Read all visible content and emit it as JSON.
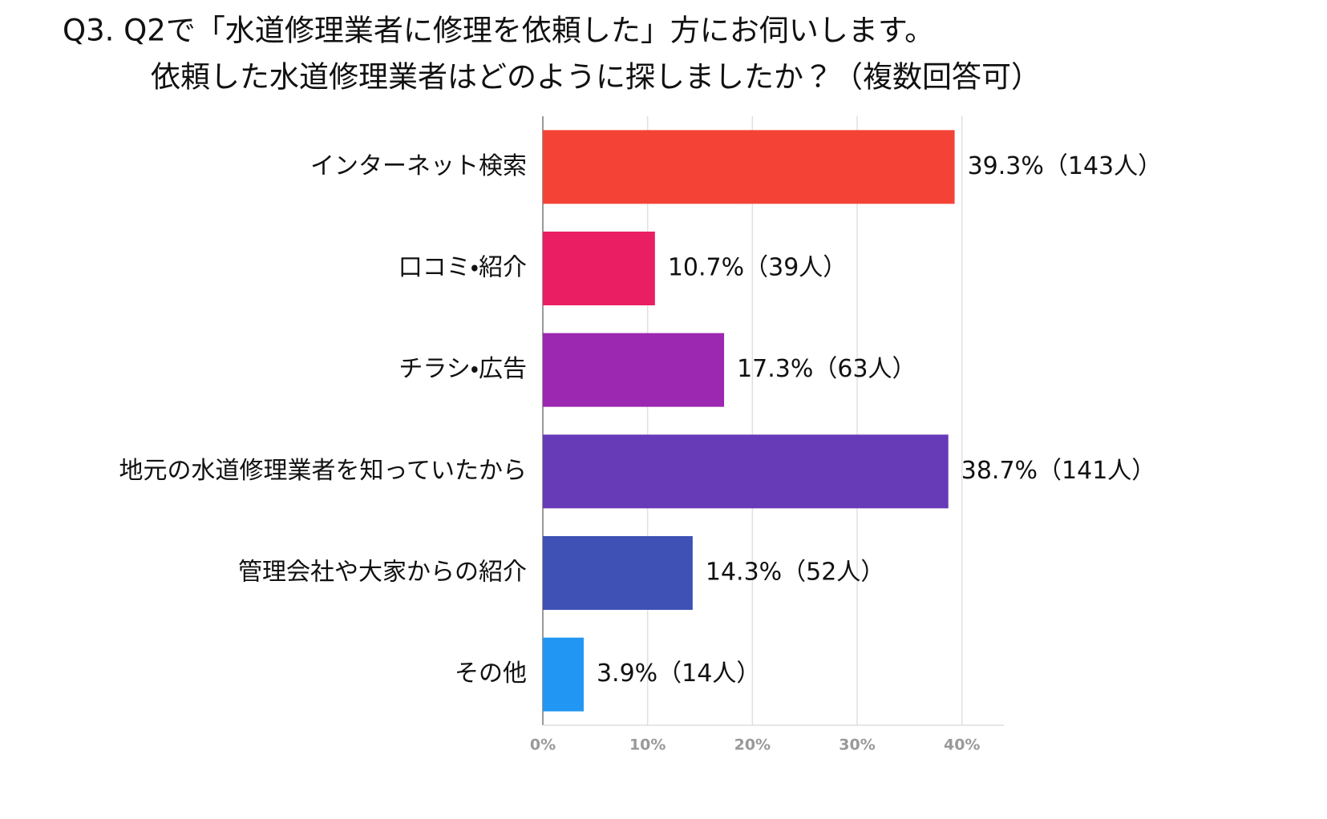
{
  "chart_data": {
    "type": "hbar",
    "title": [
      "Q3. Q2で「水道修理業者に修理を依頼した」方にお伺いします。",
      "依頼した水道修理業者はどのように探しましたか？（複数回答可）"
    ],
    "categories": [
      "インターネット検索",
      "口コミ・紹介",
      "チラシ・広告",
      "地元の水道修理業者を知っていたから",
      "管理会社や大家からの紹介",
      "その他"
    ],
    "values": [
      39.3,
      10.7,
      17.3,
      38.7,
      14.3,
      3.9
    ],
    "value_labels": [
      "39.3%（143人）",
      "10.7%（39人）",
      "17.3%（63人）",
      "38.7%（141人）",
      "14.3%（52人）",
      "3.9%（14人）"
    ],
    "colors": [
      "#f44336",
      "#e91e63",
      "#9c27b0",
      "#673ab7",
      "#3f51b5",
      "#2196f3"
    ],
    "xlim": [
      0,
      44
    ],
    "xticks": [
      {
        "value": 0,
        "label": "0%"
      },
      {
        "value": 10,
        "label": "10%"
      },
      {
        "value": 20,
        "label": "20%"
      },
      {
        "value": 30,
        "label": "30%"
      },
      {
        "value": 40,
        "label": "40%"
      }
    ],
    "grid": true
  }
}
